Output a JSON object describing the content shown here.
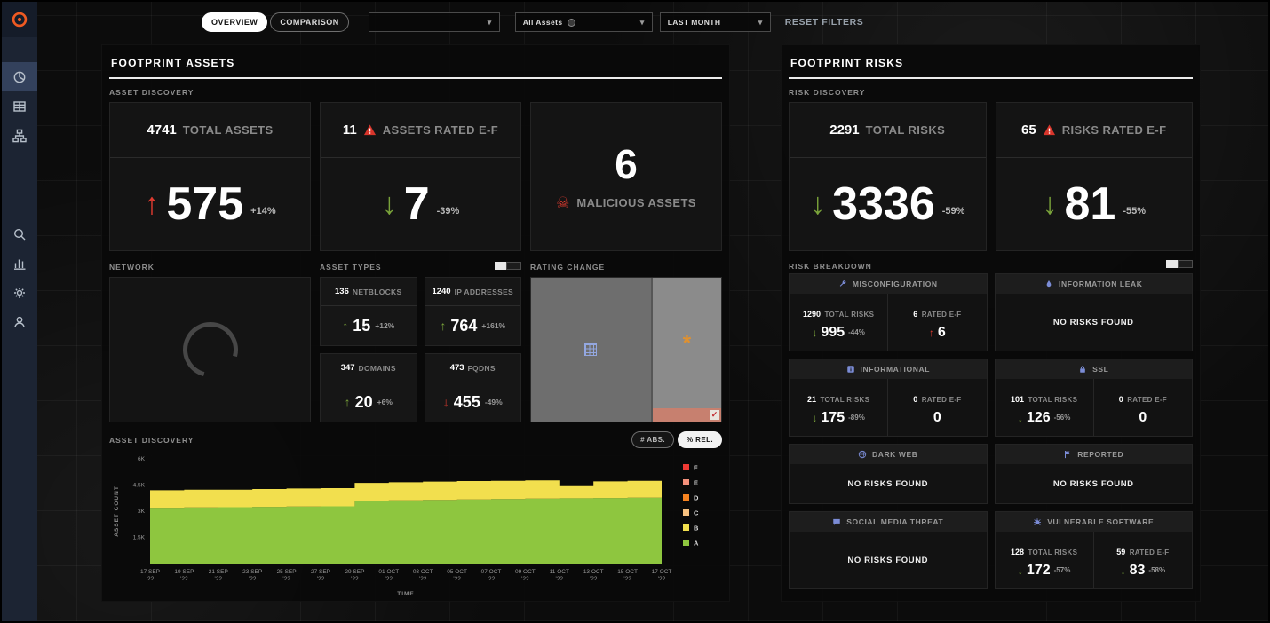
{
  "icons": {
    "arrow_up": "↑",
    "arrow_down": "↓",
    "skull": "☠",
    "chevron_down": "▾",
    "asterisk": "*",
    "check": "✓"
  },
  "sidebar": {
    "logo": "brand-logo",
    "primary": [
      {
        "icon": "donut-chart",
        "active": true
      },
      {
        "icon": "table",
        "active": false
      },
      {
        "icon": "sitemap",
        "active": false
      }
    ],
    "secondary": [
      {
        "icon": "search",
        "active": false
      },
      {
        "icon": "bar-chart",
        "active": false
      },
      {
        "icon": "gear",
        "active": false
      },
      {
        "icon": "user",
        "active": false
      }
    ]
  },
  "topbar": {
    "tabs": [
      {
        "label": "OVERVIEW",
        "active": true
      },
      {
        "label": "COMPARISON",
        "active": false
      }
    ],
    "filter1": {
      "value": ""
    },
    "filter2": {
      "value": "All Assets"
    },
    "time_range": {
      "value": "LAST MONTH"
    },
    "reset_filters": "RESET FILTERS"
  },
  "assets": {
    "title": "FOOTPRINT ASSETS",
    "discovery": {
      "label": "ASSET DISCOVERY",
      "total": {
        "value": "4741",
        "label": "TOTAL ASSETS",
        "delta": "575",
        "delta_pct": "+14%",
        "dir": "up",
        "color": "red"
      },
      "rated": {
        "value": "11",
        "label": "ASSETS RATED E-F",
        "delta": "7",
        "delta_pct": "-39%",
        "dir": "down",
        "color": "green"
      },
      "malicious": {
        "value": "6",
        "label": "MALICIOUS ASSETS"
      }
    },
    "network": {
      "label": "NETWORK"
    },
    "asset_types": {
      "label": "ASSET TYPES",
      "items": [
        {
          "value": "136",
          "label": "NETBLOCKS",
          "delta": "15",
          "pct": "+12%",
          "dir": "up",
          "color": "green"
        },
        {
          "value": "1240",
          "label": "IP ADDRESSES",
          "delta": "764",
          "pct": "+161%",
          "dir": "up",
          "color": "green"
        },
        {
          "value": "347",
          "label": "DOMAINS",
          "delta": "20",
          "pct": "+6%",
          "dir": "up",
          "color": "green"
        },
        {
          "value": "473",
          "label": "FQDNS",
          "delta": "455",
          "pct": "-49%",
          "dir": "down",
          "color": "red"
        }
      ]
    },
    "rating_change": {
      "label": "RATING CHANGE"
    },
    "chart_section": {
      "label": "ASSET DISCOVERY",
      "abs_label": "# ABS.",
      "rel_label": "% REL."
    }
  },
  "risks": {
    "title": "FOOTPRINT RISKS",
    "discovery": {
      "label": "RISK DISCOVERY",
      "total": {
        "value": "2291",
        "label": "TOTAL RISKS",
        "delta": "3336",
        "delta_pct": "-59%",
        "dir": "down",
        "color": "green"
      },
      "rated": {
        "value": "65",
        "label": "RISKS RATED E-F",
        "delta": "81",
        "delta_pct": "-55%",
        "dir": "down",
        "color": "green"
      }
    },
    "breakdown": {
      "label": "RISK BREAKDOWN",
      "no_risks_text": "NO RISKS FOUND",
      "cards": [
        {
          "title": "MISCONFIGURATION",
          "icon": "wrench",
          "empty": false,
          "total": {
            "value": "1290",
            "label": "TOTAL RISKS",
            "delta": "995",
            "pct": "-44%",
            "dir": "down",
            "color": "green"
          },
          "rated": {
            "value": "6",
            "label": "RATED E-F",
            "delta": "6",
            "pct": "",
            "dir": "up",
            "color": "red"
          }
        },
        {
          "title": "INFORMATION LEAK",
          "icon": "droplet",
          "empty": true
        },
        {
          "title": "INFORMATIONAL",
          "icon": "info",
          "empty": false,
          "total": {
            "value": "21",
            "label": "TOTAL RISKS",
            "delta": "175",
            "pct": "-89%",
            "dir": "down",
            "color": "green"
          },
          "rated": {
            "value": "0",
            "label": "RATED E-F",
            "delta": "0",
            "pct": "",
            "dir": "none",
            "color": "none"
          }
        },
        {
          "title": "SSL",
          "icon": "lock",
          "empty": false,
          "total": {
            "value": "101",
            "label": "TOTAL RISKS",
            "delta": "126",
            "pct": "-56%",
            "dir": "down",
            "color": "green"
          },
          "rated": {
            "value": "0",
            "label": "RATED E-F",
            "delta": "0",
            "pct": "",
            "dir": "none",
            "color": "none"
          }
        },
        {
          "title": "DARK WEB",
          "icon": "globe",
          "empty": true
        },
        {
          "title": "REPORTED",
          "icon": "flag",
          "empty": true
        },
        {
          "title": "SOCIAL MEDIA THREAT",
          "icon": "chat",
          "empty": true
        },
        {
          "title": "VULNERABLE SOFTWARE",
          "icon": "bug",
          "empty": false,
          "total": {
            "value": "128",
            "label": "TOTAL RISKS",
            "delta": "172",
            "pct": "-57%",
            "dir": "down",
            "color": "green"
          },
          "rated": {
            "value": "59",
            "label": "RATED E-F",
            "delta": "83",
            "pct": "-58%",
            "dir": "down",
            "color": "green"
          }
        }
      ]
    }
  },
  "chart_data": {
    "type": "area",
    "stacked": true,
    "title": "ASSET DISCOVERY",
    "xlabel": "TIME",
    "ylabel": "ASSET COUNT",
    "ylim": [
      0,
      6000
    ],
    "yticks": [
      {
        "v": 6000,
        "label": "6K"
      },
      {
        "v": 4500,
        "label": "4.5K"
      },
      {
        "v": 3000,
        "label": "3K"
      },
      {
        "v": 1500,
        "label": "1.5K"
      }
    ],
    "x": [
      "17 SEP",
      "19 SEP",
      "21 SEP",
      "23 SEP",
      "25 SEP",
      "27 SEP",
      "29 SEP",
      "01 OCT",
      "03 OCT",
      "05 OCT",
      "07 OCT",
      "09 OCT",
      "11 OCT",
      "13 OCT",
      "15 OCT",
      "17 OCT"
    ],
    "x_sub": "'22",
    "legend": [
      "F",
      "E",
      "D",
      "C",
      "B",
      "A"
    ],
    "legend_position": "right",
    "grid": false,
    "series": [
      {
        "name": "A",
        "color": "#8ec63f",
        "values": [
          3200,
          3220,
          3230,
          3250,
          3270,
          3280,
          3600,
          3620,
          3650,
          3670,
          3700,
          3720,
          3740,
          3760,
          3780,
          4300
        ]
      },
      {
        "name": "B",
        "color": "#f2df4e",
        "values": [
          1000,
          1010,
          1000,
          1020,
          1030,
          1040,
          1020,
          1040,
          1050,
          1060,
          1040,
          1050,
          700,
          950,
          960,
          450
        ]
      },
      {
        "name": "C",
        "color": "#f7c180",
        "values": [
          0,
          0,
          0,
          0,
          0,
          0,
          0,
          0,
          0,
          0,
          0,
          0,
          0,
          0,
          0,
          0
        ]
      },
      {
        "name": "D",
        "color": "#f58220",
        "values": [
          0,
          0,
          0,
          0,
          0,
          0,
          0,
          0,
          0,
          0,
          0,
          0,
          0,
          0,
          0,
          0
        ]
      },
      {
        "name": "E",
        "color": "#f4907b",
        "values": [
          0,
          0,
          0,
          0,
          0,
          0,
          0,
          0,
          0,
          0,
          0,
          0,
          0,
          0,
          0,
          0
        ]
      },
      {
        "name": "F",
        "color": "#ee3a34",
        "values": [
          0,
          0,
          0,
          0,
          0,
          0,
          0,
          0,
          0,
          0,
          0,
          0,
          0,
          0,
          0,
          0
        ]
      }
    ]
  }
}
